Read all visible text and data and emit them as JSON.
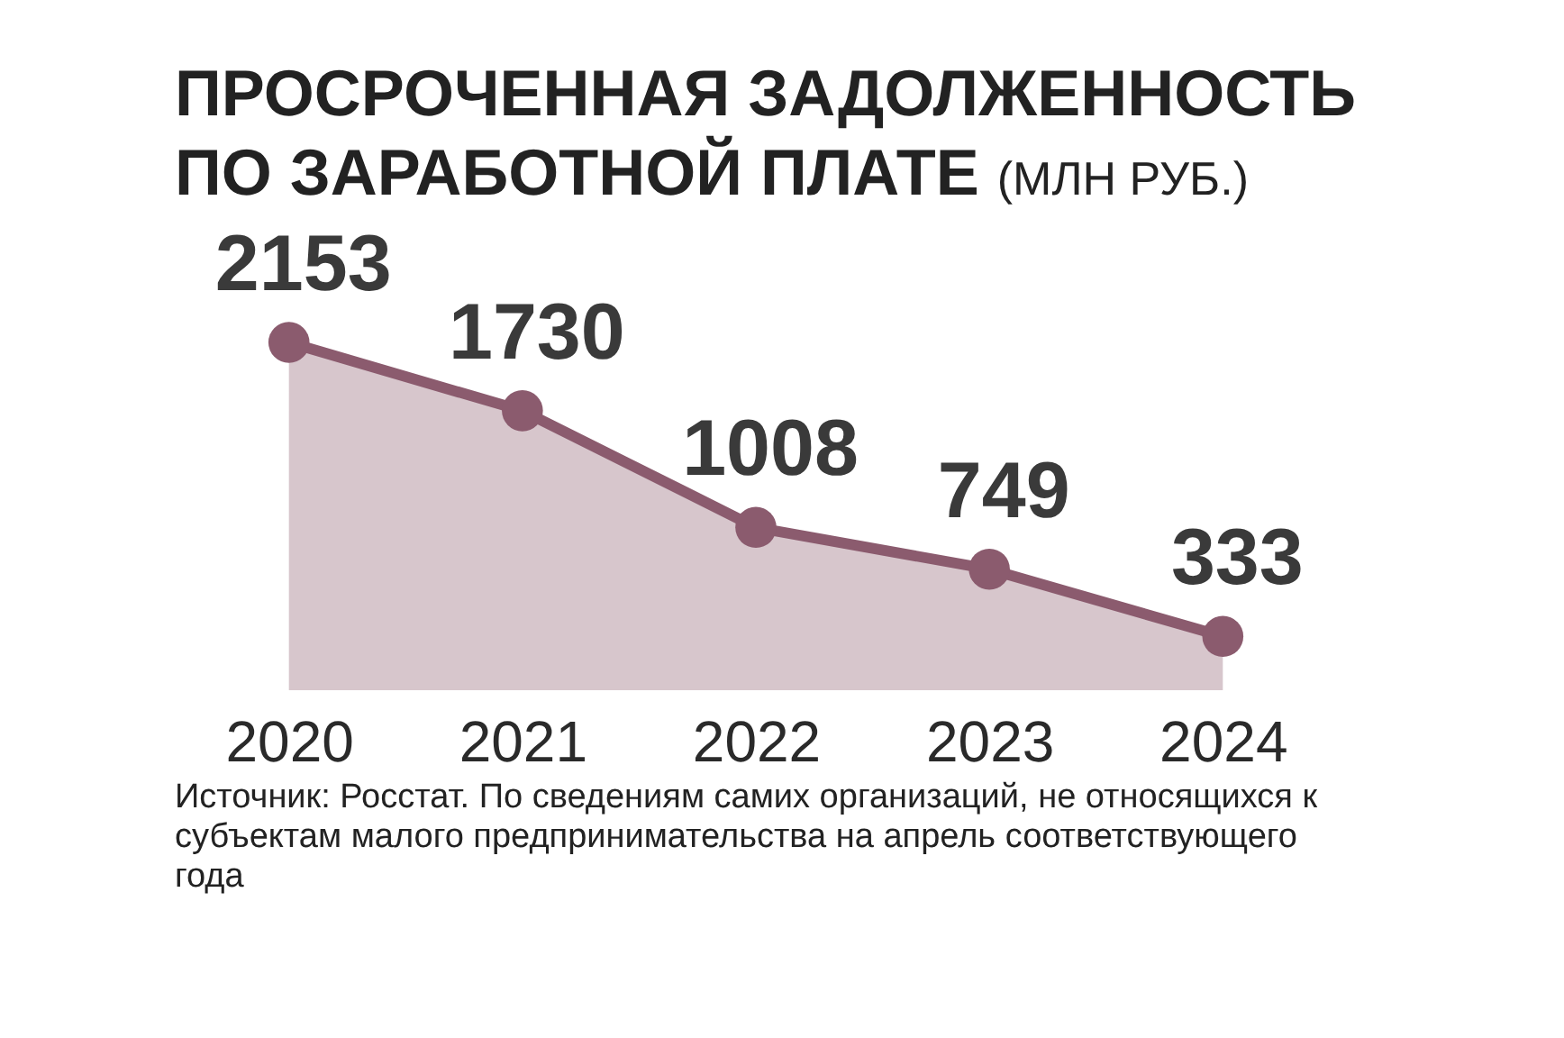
{
  "chart_data": {
    "type": "area",
    "title": "ПРОСРОЧЕННАЯ ЗАДОЛЖЕННОСТЬ ПО ЗАРАБОТНОЙ ПЛАТЕ",
    "subtitle": "(МЛН РУБ.)",
    "categories": [
      "2020",
      "2021",
      "2022",
      "2023",
      "2024"
    ],
    "series": [
      {
        "color": "#8b5b6e",
        "values": [
          2153,
          1730,
          1008,
          749,
          333
        ]
      }
    ],
    "data_labels": true,
    "marker": "circle",
    "grid": false,
    "legend": false,
    "annotations": [
      "Источник: Росстат. По сведениям самих организаций, не относящихся к субъектам малого предпринимательства на апрель соответствующего года"
    ]
  }
}
